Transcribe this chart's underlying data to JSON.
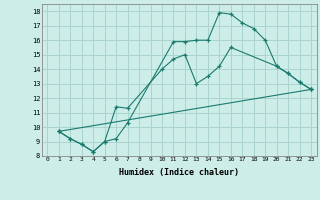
{
  "xlabel": "Humidex (Indice chaleur)",
  "background_color": "#cdeee8",
  "grid_color": "#aad4ce",
  "line_color": "#1a7a6e",
  "xlim": [
    -0.5,
    23.5
  ],
  "ylim": [
    8.0,
    18.5
  ],
  "xticks": [
    0,
    1,
    2,
    3,
    4,
    5,
    6,
    7,
    8,
    9,
    10,
    11,
    12,
    13,
    14,
    15,
    16,
    17,
    18,
    19,
    20,
    21,
    22,
    23
  ],
  "yticks": [
    8,
    9,
    10,
    11,
    12,
    13,
    14,
    15,
    16,
    17,
    18
  ],
  "line1_x": [
    1,
    2,
    3,
    4,
    5,
    6,
    7,
    11,
    12,
    13,
    14,
    15,
    16,
    17,
    18,
    19,
    20,
    21,
    22,
    23
  ],
  "line1_y": [
    9.7,
    9.2,
    8.8,
    8.3,
    9.0,
    9.2,
    10.3,
    15.9,
    15.9,
    16.0,
    16.0,
    17.9,
    17.8,
    17.2,
    16.8,
    16.0,
    14.2,
    13.7,
    13.1,
    12.6
  ],
  "line2_x": [
    1,
    2,
    3,
    4,
    5,
    6,
    7,
    10,
    11,
    12,
    13,
    14,
    15,
    16,
    20,
    21,
    22,
    23
  ],
  "line2_y": [
    9.7,
    9.2,
    8.8,
    8.3,
    9.0,
    11.4,
    11.3,
    14.0,
    14.7,
    15.0,
    13.0,
    13.5,
    14.2,
    15.5,
    14.2,
    13.7,
    13.1,
    12.6
  ],
  "line3_x": [
    1,
    23
  ],
  "line3_y": [
    9.7,
    12.6
  ]
}
